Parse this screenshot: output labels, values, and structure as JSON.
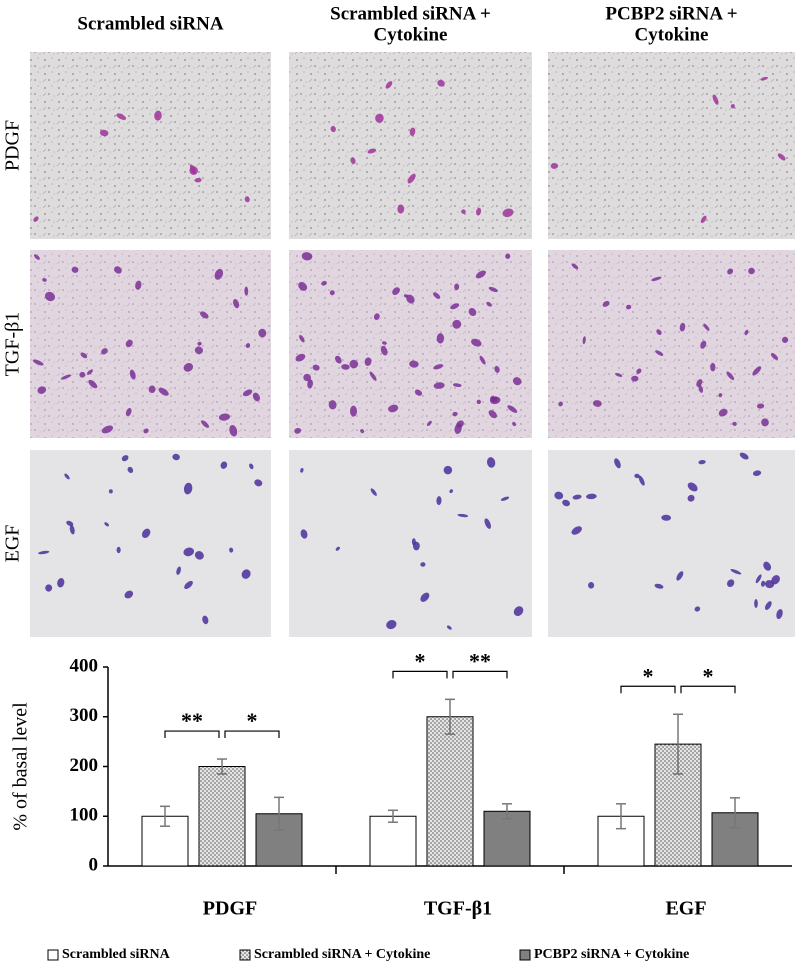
{
  "panels": {
    "column_headers": [
      [
        "Scrambled siRNA"
      ],
      [
        "Scrambled siRNA +",
        "Cytokine"
      ],
      [
        "PCBP2 siRNA +",
        "Cytokine"
      ]
    ],
    "row_labels": [
      "PDGF",
      "TGF-β1",
      "EGF"
    ]
  },
  "chart_data": {
    "type": "bar",
    "y_label": "% of basal level",
    "categories": [
      "PDGF",
      "TGF-β1",
      "EGF"
    ],
    "series": [
      {
        "name": "Scrambled siRNA",
        "color": "#ffffff",
        "values": [
          100,
          100,
          100
        ],
        "errors": [
          20,
          12,
          25
        ]
      },
      {
        "name": "Scrambled siRNA + Cytokine",
        "color": "#cccccc",
        "values": [
          200,
          300,
          245
        ],
        "errors": [
          15,
          35,
          60
        ]
      },
      {
        "name": "PCBP2 siRNA + Cytokine",
        "color": "#808080",
        "values": [
          105,
          110,
          107
        ],
        "errors": [
          33,
          15,
          30
        ]
      }
    ],
    "significance": [
      [
        "**",
        "*"
      ],
      [
        "*",
        "**"
      ],
      [
        "*",
        "*"
      ]
    ],
    "ylim": [
      0,
      400
    ],
    "yticks": [
      0,
      100,
      200,
      300,
      400
    ],
    "grid": false,
    "legend": "bottom"
  }
}
